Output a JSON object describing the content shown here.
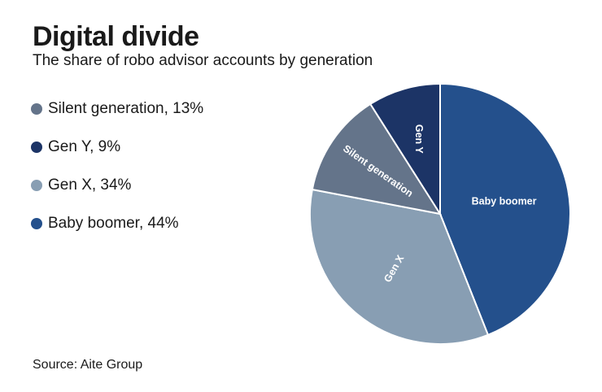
{
  "title": "Digital divide",
  "subtitle": "The share of robo advisor accounts by generation",
  "source": "Source: Aite Group",
  "legend": [
    {
      "label": "Silent generation, 13%",
      "color": "#64748a"
    },
    {
      "label": "Gen Y, 9%",
      "color": "#1c3466"
    },
    {
      "label": "Gen X, 34%",
      "color": "#889eb3"
    },
    {
      "label": "Baby boomer, 44%",
      "color": "#24508c"
    }
  ],
  "chart_data": {
    "type": "pie",
    "title": "Digital divide",
    "subtitle": "The share of robo advisor accounts by generation",
    "start": "12 o'clock, clockwise",
    "slices": [
      {
        "label": "Baby boomer",
        "value": 44,
        "color": "#24508c"
      },
      {
        "label": "Gen X",
        "value": 34,
        "color": "#889eb3"
      },
      {
        "label": "Silent generation",
        "value": 13,
        "color": "#64748a"
      },
      {
        "label": "Gen Y",
        "value": 9,
        "color": "#1c3466"
      }
    ]
  }
}
